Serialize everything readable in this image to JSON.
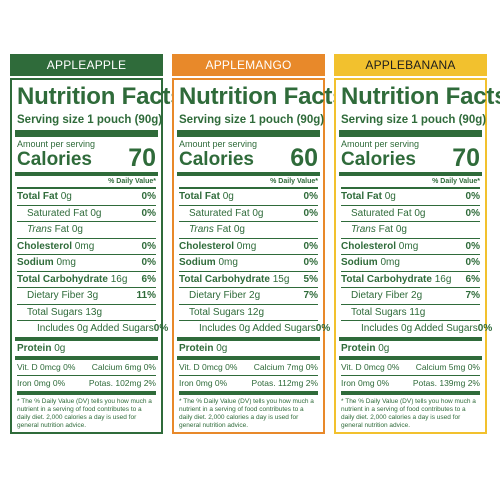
{
  "shared": {
    "title": "Nutrition Facts",
    "serving_size": "Serving size 1 pouch (90g)",
    "amount_per_serving": "Amount per serving",
    "calories_label": "Calories",
    "daily_value_header": "% Daily Value*",
    "footnote": "* The % Daily Value (DV) tells you how much a nutrient in a serving of food contributes to a daily diet. 2,000 calories a day is used for general nutrition advice."
  },
  "panels": [
    {
      "flavor": "APPLEAPPLE",
      "accent_color": "#2f6b3a",
      "banner_text_color": "#ffffff",
      "calories": "70",
      "rows": {
        "total_fat": {
          "name": "Total Fat",
          "amount": "0g",
          "pct": "0%"
        },
        "saturated_fat": {
          "name": "Saturated Fat",
          "amount": "0g",
          "pct": "0%"
        },
        "trans_fat": {
          "name_italic": "Trans",
          "name": "Fat",
          "amount": "0g"
        },
        "cholesterol": {
          "name": "Cholesterol",
          "amount": "0mg",
          "pct": "0%"
        },
        "sodium": {
          "name": "Sodium",
          "amount": "0mg",
          "pct": "0%"
        },
        "total_carb": {
          "name": "Total Carbohydrate",
          "amount": "16g",
          "pct": "6%"
        },
        "fiber": {
          "name": "Dietary Fiber",
          "amount": "3g",
          "pct": "11%"
        },
        "sugars": {
          "name": "Total Sugars",
          "amount": "13g"
        },
        "added_sugars": {
          "name": "Includes 0g Added Sugars",
          "pct": "0%"
        },
        "protein": {
          "name": "Protein",
          "amount": "0g"
        }
      },
      "vitamins": {
        "vit_d": "Vit. D 0mcg 0%",
        "calcium": "Calcium 6mg 0%",
        "iron": "Iron 0mg 0%",
        "potassium": "Potas. 102mg 2%"
      }
    },
    {
      "flavor": "APPLEMANGO",
      "accent_color": "#e8892a",
      "banner_text_color": "#ffffff",
      "calories": "60",
      "rows": {
        "total_fat": {
          "name": "Total Fat",
          "amount": "0g",
          "pct": "0%"
        },
        "saturated_fat": {
          "name": "Saturated Fat",
          "amount": "0g",
          "pct": "0%"
        },
        "trans_fat": {
          "name_italic": "Trans",
          "name": "Fat",
          "amount": "0g"
        },
        "cholesterol": {
          "name": "Cholesterol",
          "amount": "0mg",
          "pct": "0%"
        },
        "sodium": {
          "name": "Sodium",
          "amount": "0mg",
          "pct": "0%"
        },
        "total_carb": {
          "name": "Total Carbohydrate",
          "amount": "15g",
          "pct": "5%"
        },
        "fiber": {
          "name": "Dietary Fiber",
          "amount": "2g",
          "pct": "7%"
        },
        "sugars": {
          "name": "Total Sugars",
          "amount": "12g"
        },
        "added_sugars": {
          "name": "Includes 0g Added Sugars",
          "pct": "0%"
        },
        "protein": {
          "name": "Protein",
          "amount": "0g"
        }
      },
      "vitamins": {
        "vit_d": "Vit. D 0mcg 0%",
        "calcium": "Calcium 7mg 0%",
        "iron": "Iron 0mg 0%",
        "potassium": "Potas. 112mg 2%"
      }
    },
    {
      "flavor": "APPLEBANANA",
      "accent_color": "#f2c12e",
      "banner_text_color": "#1e1e1e",
      "calories": "70",
      "rows": {
        "total_fat": {
          "name": "Total Fat",
          "amount": "0g",
          "pct": "0%"
        },
        "saturated_fat": {
          "name": "Saturated Fat",
          "amount": "0g",
          "pct": "0%"
        },
        "trans_fat": {
          "name_italic": "Trans",
          "name": "Fat",
          "amount": "0g"
        },
        "cholesterol": {
          "name": "Cholesterol",
          "amount": "0mg",
          "pct": "0%"
        },
        "sodium": {
          "name": "Sodium",
          "amount": "0mg",
          "pct": "0%"
        },
        "total_carb": {
          "name": "Total Carbohydrate",
          "amount": "16g",
          "pct": "6%"
        },
        "fiber": {
          "name": "Dietary Fiber",
          "amount": "2g",
          "pct": "7%"
        },
        "sugars": {
          "name": "Total Sugars",
          "amount": "11g"
        },
        "added_sugars": {
          "name": "Includes 0g Added Sugars",
          "pct": "0%"
        },
        "protein": {
          "name": "Protein",
          "amount": "0g"
        }
      },
      "vitamins": {
        "vit_d": "Vit. D 0mcg 0%",
        "calcium": "Calcium 5mg 0%",
        "iron": "Iron 0mg 0%",
        "potassium": "Potas. 139mg 2%"
      }
    }
  ],
  "label_color": "#2f6b3a"
}
